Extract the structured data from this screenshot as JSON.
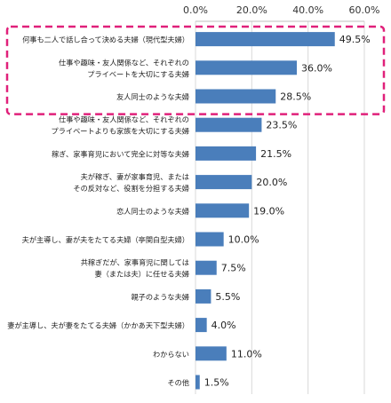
{
  "chart_data": {
    "type": "bar",
    "orientation": "horizontal",
    "categories": [
      "何事も二人で話し合って決める夫婦（現代型夫婦）",
      "仕事や趣味・友人関係など、それぞれの\nプライベートを大切にする夫婦",
      "友人同士のような夫婦",
      "仕事や趣味・友人関係など、それぞれの\nプライベートよりも家族を大切にする夫婦",
      "稼ぎ、家事育児において完全に対等な夫婦",
      "夫が稼ぎ、妻が家事育児、または\nその反対など、役割を分担する夫婦",
      "恋人同士のような夫婦",
      "夫が主導し、妻が夫をたてる夫婦（亭関白型夫婦）",
      "共稼ぎだが、家事育児に関しては\n妻（または夫）に任せる夫婦",
      "親子のような夫婦",
      "妻が主導し、夫が妻をたてる夫婦（かかあ天下型夫婦）",
      "わからない",
      "その他"
    ],
    "values": [
      49.5,
      36.0,
      28.5,
      23.5,
      21.5,
      20.0,
      19.0,
      10.0,
      7.5,
      5.5,
      4.0,
      11.0,
      1.5
    ],
    "value_labels": [
      "49.5%",
      "36.0%",
      "28.5%",
      "23.5%",
      "21.5%",
      "20.0%",
      "19.0%",
      "10.0%",
      "7.5%",
      "5.5%",
      "4.0%",
      "11.0%",
      "1.5%"
    ],
    "xlim": [
      0,
      60
    ],
    "xticks": [
      0,
      20,
      40,
      60
    ],
    "xtick_labels": [
      "0.0%",
      "20.0%",
      "40.0%",
      "60.0%"
    ],
    "x_axis_position": "top",
    "grid": true,
    "bar_color": "#4a7ebb",
    "highlight": {
      "top_items": 3,
      "style": "dashed",
      "color": "#e0207a"
    }
  }
}
